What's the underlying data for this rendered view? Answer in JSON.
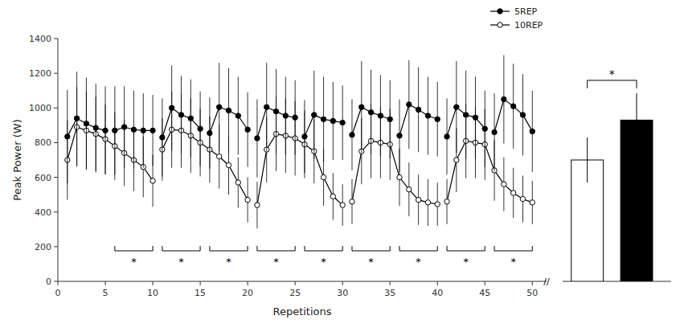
{
  "chart_data": [
    {
      "type": "line",
      "xlabel": "Repetitions",
      "ylabel": "Peak Power (W)",
      "xlim": [
        0,
        51.5
      ],
      "ylim": [
        0,
        1400
      ],
      "xticks": [
        0,
        5,
        10,
        15,
        20,
        25,
        30,
        35,
        40,
        45,
        50
      ],
      "yticks": [
        0,
        200,
        400,
        600,
        800,
        1000,
        1200,
        1400
      ],
      "grid": false,
      "legend": "upper right",
      "series": [
        {
          "name": "5REP",
          "color": "black",
          "marker": "circle",
          "line_style": "solid",
          "segments": [
            {
              "x": [
                1,
                2,
                3,
                4,
                5
              ],
              "values": [
                835,
                940,
                910,
                885,
                870
              ],
              "errors": [
                270,
                270,
                265,
                255,
                255
              ]
            },
            {
              "x": [
                6,
                7,
                8,
                9,
                10
              ],
              "values": [
                870,
                890,
                875,
                870,
                870
              ],
              "errors": [
                255,
                235,
                225,
                215,
                205
              ]
            },
            {
              "x": [
                11,
                12,
                13,
                14,
                15
              ],
              "values": [
                830,
                1000,
                960,
                940,
                880
              ],
              "errors": [
                225,
                245,
                225,
                225,
                215
              ]
            },
            {
              "x": [
                16,
                17,
                18,
                19,
                20
              ],
              "values": [
                855,
                1005,
                985,
                955,
                875
              ],
              "errors": [
                205,
                255,
                245,
                225,
                215
              ]
            },
            {
              "x": [
                21,
                22,
                23,
                24,
                25
              ],
              "values": [
                825,
                1005,
                980,
                955,
                945
              ],
              "errors": [
                225,
                255,
                245,
                225,
                215
              ]
            },
            {
              "x": [
                26,
                27,
                28,
                29,
                30
              ],
              "values": [
                835,
                960,
                935,
                925,
                915
              ],
              "errors": [
                210,
                255,
                245,
                225,
                215
              ]
            },
            {
              "x": [
                31,
                32,
                33,
                34,
                35
              ],
              "values": [
                845,
                1005,
                975,
                955,
                935
              ],
              "errors": [
                205,
                265,
                245,
                235,
                225
              ]
            },
            {
              "x": [
                36,
                37,
                38,
                39,
                40
              ],
              "values": [
                840,
                1020,
                990,
                955,
                935
              ],
              "errors": [
                210,
                255,
                245,
                225,
                215
              ]
            },
            {
              "x": [
                41,
                42,
                43,
                44,
                45
              ],
              "values": [
                835,
                1005,
                960,
                945,
                880
              ],
              "errors": [
                220,
                265,
                255,
                235,
                220
              ]
            },
            {
              "x": [
                46,
                47,
                48,
                49,
                50
              ],
              "values": [
                860,
                1050,
                1010,
                960,
                865
              ],
              "errors": [
                225,
                255,
                245,
                235,
                235
              ]
            }
          ]
        },
        {
          "name": "10REP",
          "color": "black",
          "marker": "open-circle",
          "line_style": "solid",
          "segments": [
            {
              "x": [
                1,
                2,
                3,
                4,
                5,
                6,
                7,
                8,
                9,
                10
              ],
              "values": [
                700,
                890,
                870,
                850,
                820,
                780,
                740,
                700,
                660,
                580
              ],
              "errors": [
                230,
                230,
                225,
                215,
                200,
                195,
                190,
                180,
                175,
                150
              ]
            },
            {
              "x": [
                11,
                12,
                13,
                14,
                15,
                16,
                17,
                18,
                19,
                20
              ],
              "values": [
                760,
                875,
                870,
                840,
                800,
                760,
                720,
                670,
                570,
                470
              ],
              "errors": [
                180,
                220,
                215,
                215,
                195,
                190,
                185,
                170,
                145,
                130
              ]
            },
            {
              "x": [
                21,
                22,
                23,
                24,
                25,
                26,
                27,
                28,
                29,
                30
              ],
              "values": [
                440,
                760,
                850,
                840,
                825,
                790,
                750,
                600,
                490,
                440
              ],
              "errors": [
                135,
                190,
                215,
                215,
                215,
                195,
                185,
                165,
                135,
                120
              ]
            },
            {
              "x": [
                31,
                32,
                33,
                34,
                35,
                36,
                37,
                38,
                39,
                40
              ],
              "values": [
                460,
                750,
                810,
                800,
                790,
                600,
                530,
                470,
                455,
                445
              ],
              "errors": [
                130,
                190,
                215,
                205,
                205,
                165,
                155,
                145,
                135,
                125
              ]
            },
            {
              "x": [
                41,
                42,
                43,
                44,
                45,
                46,
                47,
                48,
                49,
                50
              ],
              "values": [
                460,
                700,
                810,
                800,
                790,
                640,
                560,
                510,
                475,
                455
              ],
              "errors": [
                130,
                185,
                215,
                205,
                205,
                175,
                155,
                145,
                135,
                125
              ]
            }
          ]
        }
      ],
      "annotations": [
        {
          "text": "*",
          "x": [
            6,
            10
          ]
        },
        {
          "text": "*",
          "x": [
            11,
            15
          ]
        },
        {
          "text": "*",
          "x": [
            16,
            20
          ]
        },
        {
          "text": "*",
          "x": [
            21,
            25
          ]
        },
        {
          "text": "*",
          "x": [
            26,
            30
          ]
        },
        {
          "text": "*",
          "x": [
            31,
            35
          ]
        },
        {
          "text": "*",
          "x": [
            36,
            40
          ]
        },
        {
          "text": "*",
          "x": [
            41,
            45
          ]
        },
        {
          "text": "*",
          "x": [
            46,
            50
          ]
        },
        {
          "text": "//"
        }
      ]
    },
    {
      "type": "bar",
      "categories": [
        null,
        null
      ],
      "values": [
        700,
        930
      ],
      "errors": [
        130,
        155
      ],
      "colors": [
        "white",
        "black"
      ],
      "ylim": [
        0,
        1400
      ],
      "tick_labels": false,
      "annotations": [
        {
          "text": "*",
          "between": [
            0,
            1
          ]
        }
      ]
    }
  ]
}
